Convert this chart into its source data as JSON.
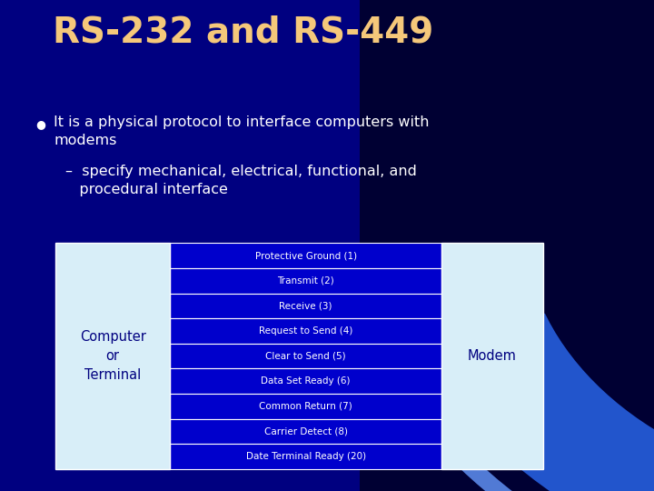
{
  "title": "RS-232 and RS-449",
  "title_color": "#F5C87A",
  "bg_color": "#000080",
  "bullet_text": "It is a physical protocol to interface computers with\nmodems",
  "sub_bullet_text": "–  specify mechanical, electrical, functional, and\n   procedural interface",
  "bullet_color": "#FFFFFF",
  "table_rows": [
    "Protective Ground (1)",
    "Transmit (2)",
    "Receive (3)",
    "Request to Send (4)",
    "Clear to Send (5)",
    "Data Set Ready (6)",
    "Common Return (7)",
    "Carrier Detect (8)",
    "Date Terminal Ready (20)"
  ],
  "row_bg_color": "#0000CC",
  "row_text_color": "#FFFFFF",
  "left_box_label": "Computer\nor\nTerminal",
  "right_box_label": "Modem",
  "box_color": "#D8EEF8",
  "box_text_color": "#000080",
  "fig_width": 7.2,
  "fig_height": 5.4
}
